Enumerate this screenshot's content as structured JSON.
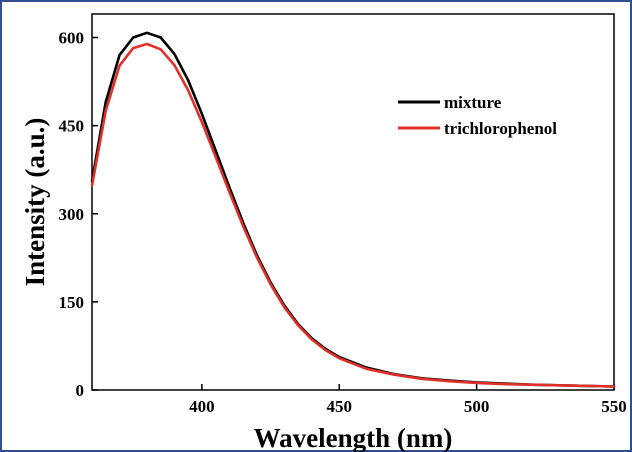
{
  "chart_data": {
    "type": "line",
    "title": "",
    "xlabel": "Wavelength (nm)",
    "ylabel": "Intensity (a.u.)",
    "xlim": [
      360,
      550
    ],
    "ylim": [
      0,
      640
    ],
    "xticks": [
      400,
      450,
      500,
      550
    ],
    "yticks": [
      0,
      150,
      300,
      450,
      600
    ],
    "grid": false,
    "legend_position": "top-right",
    "series": [
      {
        "name": "mixture",
        "color": "#000000",
        "x": [
          360,
          365,
          370,
          375,
          380,
          385,
          390,
          395,
          400,
          405,
          410,
          415,
          420,
          425,
          430,
          435,
          440,
          445,
          450,
          460,
          470,
          480,
          490,
          500,
          510,
          520,
          530,
          540,
          550
        ],
        "y": [
          355,
          490,
          570,
          600,
          608,
          600,
          572,
          527,
          470,
          408,
          345,
          285,
          230,
          183,
          144,
          112,
          88,
          70,
          56,
          38,
          27,
          20,
          16,
          13,
          11,
          9,
          8,
          7,
          6
        ]
      },
      {
        "name": "trichlorophenol",
        "color": "#e0302a",
        "x": [
          360,
          365,
          370,
          375,
          380,
          385,
          390,
          395,
          400,
          405,
          410,
          415,
          420,
          425,
          430,
          435,
          440,
          445,
          450,
          460,
          470,
          480,
          490,
          500,
          510,
          520,
          530,
          540,
          550
        ],
        "y": [
          348,
          475,
          552,
          582,
          589,
          580,
          553,
          510,
          456,
          397,
          337,
          279,
          226,
          180,
          141,
          110,
          86,
          68,
          54,
          36,
          26,
          19,
          15,
          12,
          10,
          9,
          8,
          7,
          6
        ]
      }
    ]
  }
}
